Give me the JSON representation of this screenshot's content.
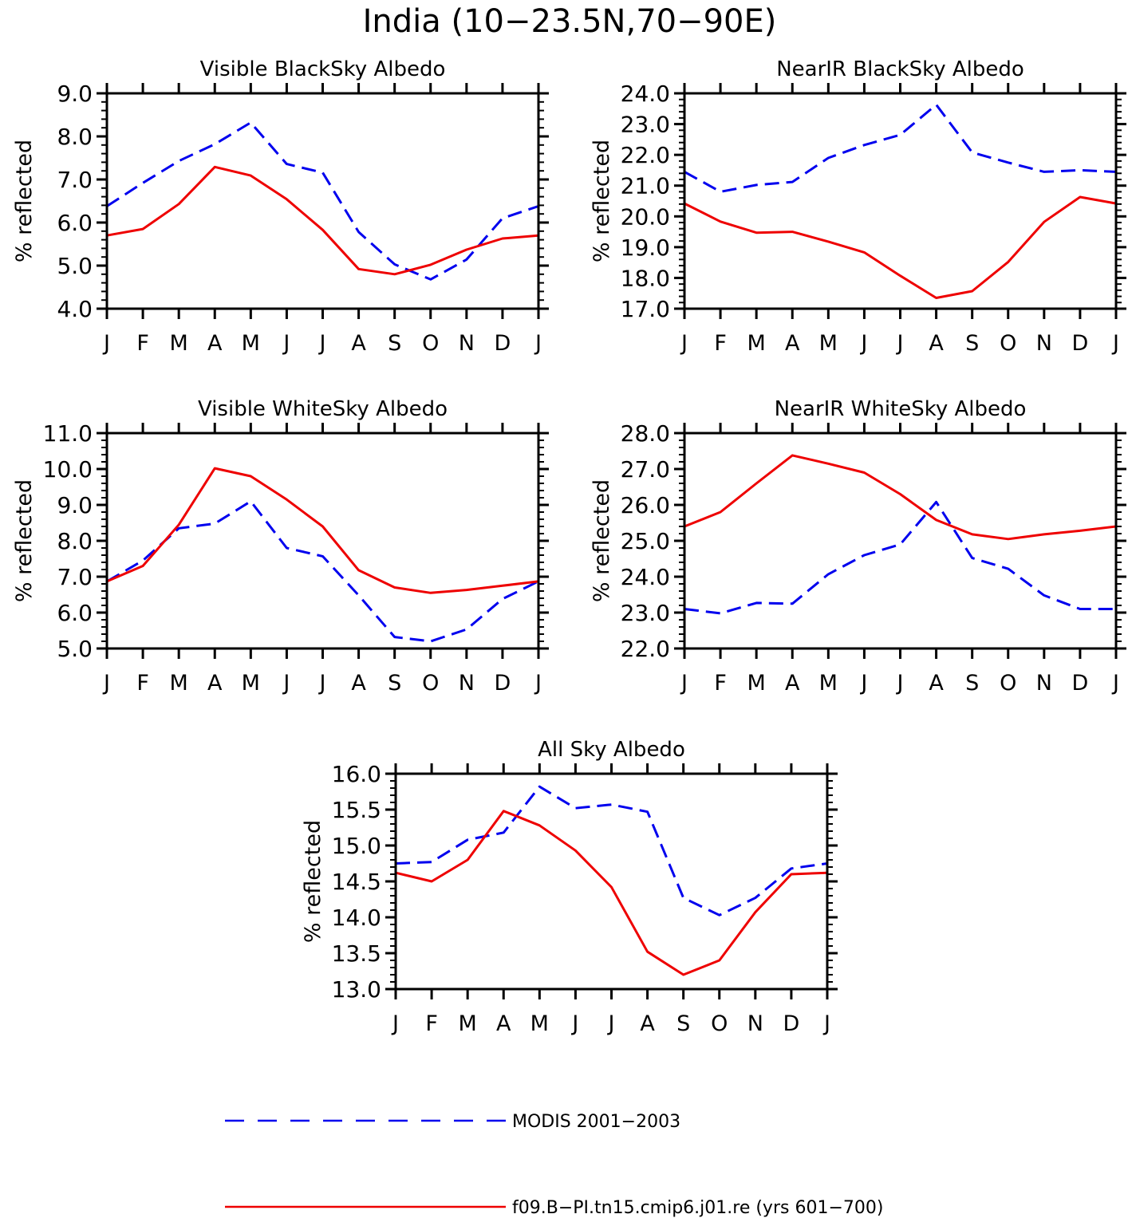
{
  "figure": {
    "title": "India (10−23.5N,70−90E)"
  },
  "legend": {
    "position": "bottom",
    "entries": [
      {
        "label": "MODIS 2001−2003",
        "color": "#0000ee",
        "dash": "dashed"
      },
      {
        "label": "f09.B−PI.tn15.cmip6.j01.re (yrs 601−700)",
        "color": "#ee0000",
        "dash": "solid"
      }
    ]
  },
  "chart_data": [
    {
      "type": "line",
      "title": "Visible BlackSky Albedo",
      "ylabel": "% reflected",
      "x": [
        "J",
        "F",
        "M",
        "A",
        "M",
        "J",
        "J",
        "A",
        "S",
        "O",
        "N",
        "D",
        "J"
      ],
      "ylim": [
        4.0,
        9.0
      ],
      "yticks": [
        "4.0",
        "5.0",
        "6.0",
        "7.0",
        "8.0",
        "9.0"
      ],
      "series": [
        {
          "name": "MODIS 2001−2003",
          "color": "#0000ee",
          "dash": "dashed",
          "values": [
            6.38,
            6.92,
            7.43,
            7.82,
            8.32,
            7.36,
            7.16,
            5.78,
            5.03,
            4.68,
            5.14,
            6.1,
            6.38
          ]
        },
        {
          "name": "f09.B−PI.tn15.cmip6.j01.re (yrs 601−700)",
          "color": "#ee0000",
          "dash": "solid",
          "values": [
            5.7,
            5.85,
            6.43,
            7.29,
            7.09,
            6.54,
            5.83,
            4.92,
            4.8,
            5.02,
            5.37,
            5.63,
            5.7
          ]
        }
      ]
    },
    {
      "type": "line",
      "title": "NearIR BlackSky Albedo",
      "ylabel": "% reflected",
      "x": [
        "J",
        "F",
        "M",
        "A",
        "M",
        "J",
        "J",
        "A",
        "S",
        "O",
        "N",
        "D",
        "J"
      ],
      "ylim": [
        17.0,
        24.0
      ],
      "yticks": [
        "17.0",
        "18.0",
        "19.0",
        "20.0",
        "21.0",
        "22.0",
        "23.0",
        "24.0"
      ],
      "series": [
        {
          "name": "MODIS 2001−2003",
          "color": "#0000ee",
          "dash": "dashed",
          "values": [
            21.45,
            20.8,
            21.02,
            21.12,
            21.9,
            22.32,
            22.65,
            23.63,
            22.08,
            21.75,
            21.45,
            21.5,
            21.45
          ]
        },
        {
          "name": "f09.B−PI.tn15.cmip6.j01.re (yrs 601−700)",
          "color": "#ee0000",
          "dash": "solid",
          "values": [
            20.42,
            19.83,
            19.47,
            19.5,
            19.18,
            18.83,
            18.07,
            17.35,
            17.57,
            18.52,
            19.82,
            20.63,
            20.42
          ]
        }
      ]
    },
    {
      "type": "line",
      "title": "Visible WhiteSky Albedo",
      "ylabel": "% reflected",
      "x": [
        "J",
        "F",
        "M",
        "A",
        "M",
        "J",
        "J",
        "A",
        "S",
        "O",
        "N",
        "D",
        "J"
      ],
      "ylim": [
        5.0,
        11.0
      ],
      "yticks": [
        "5.0",
        "6.0",
        "7.0",
        "8.0",
        "9.0",
        "10.0",
        "11.0"
      ],
      "series": [
        {
          "name": "MODIS 2001−2003",
          "color": "#0000ee",
          "dash": "dashed",
          "values": [
            6.87,
            7.45,
            8.35,
            8.48,
            9.1,
            7.8,
            7.57,
            6.48,
            5.32,
            5.2,
            5.53,
            6.38,
            6.87
          ]
        },
        {
          "name": "f09.B−PI.tn15.cmip6.j01.re (yrs 601−700)",
          "color": "#ee0000",
          "dash": "solid",
          "values": [
            6.87,
            7.3,
            8.45,
            10.02,
            9.8,
            9.15,
            8.4,
            7.18,
            6.7,
            6.55,
            6.63,
            6.75,
            6.87
          ]
        }
      ]
    },
    {
      "type": "line",
      "title": "NearIR WhiteSky Albedo",
      "ylabel": "% reflected",
      "x": [
        "J",
        "F",
        "M",
        "A",
        "M",
        "J",
        "J",
        "A",
        "S",
        "O",
        "N",
        "D",
        "J"
      ],
      "ylim": [
        22.0,
        28.0
      ],
      "yticks": [
        "22.0",
        "23.0",
        "24.0",
        "25.0",
        "26.0",
        "27.0",
        "28.0"
      ],
      "series": [
        {
          "name": "MODIS 2001−2003",
          "color": "#0000ee",
          "dash": "dashed",
          "values": [
            23.1,
            22.98,
            23.27,
            23.25,
            24.07,
            24.6,
            24.9,
            26.08,
            24.52,
            24.22,
            23.48,
            23.1,
            23.1
          ]
        },
        {
          "name": "f09.B−PI.tn15.cmip6.j01.re (yrs 601−700)",
          "color": "#ee0000",
          "dash": "solid",
          "values": [
            25.4,
            25.8,
            26.6,
            27.38,
            27.15,
            26.9,
            26.3,
            25.58,
            25.18,
            25.05,
            25.18,
            25.28,
            25.4
          ]
        }
      ]
    },
    {
      "type": "line",
      "title": "All Sky Albedo",
      "ylabel": "% reflected",
      "x": [
        "J",
        "F",
        "M",
        "A",
        "M",
        "J",
        "J",
        "A",
        "S",
        "O",
        "N",
        "D",
        "J"
      ],
      "ylim": [
        13.0,
        16.0
      ],
      "yticks": [
        "13.0",
        "13.5",
        "14.0",
        "14.5",
        "15.0",
        "15.5",
        "16.0"
      ],
      "series": [
        {
          "name": "MODIS 2001−2003",
          "color": "#0000ee",
          "dash": "dashed",
          "values": [
            14.75,
            14.77,
            15.08,
            15.18,
            15.82,
            15.52,
            15.57,
            15.47,
            14.27,
            14.03,
            14.27,
            14.68,
            14.75
          ]
        },
        {
          "name": "f09.B−PI.tn15.cmip6.j01.re (yrs 601−700)",
          "color": "#ee0000",
          "dash": "solid",
          "values": [
            14.62,
            14.5,
            14.8,
            15.48,
            15.28,
            14.93,
            14.42,
            13.52,
            13.2,
            13.4,
            14.07,
            14.6,
            14.62
          ]
        }
      ]
    }
  ]
}
